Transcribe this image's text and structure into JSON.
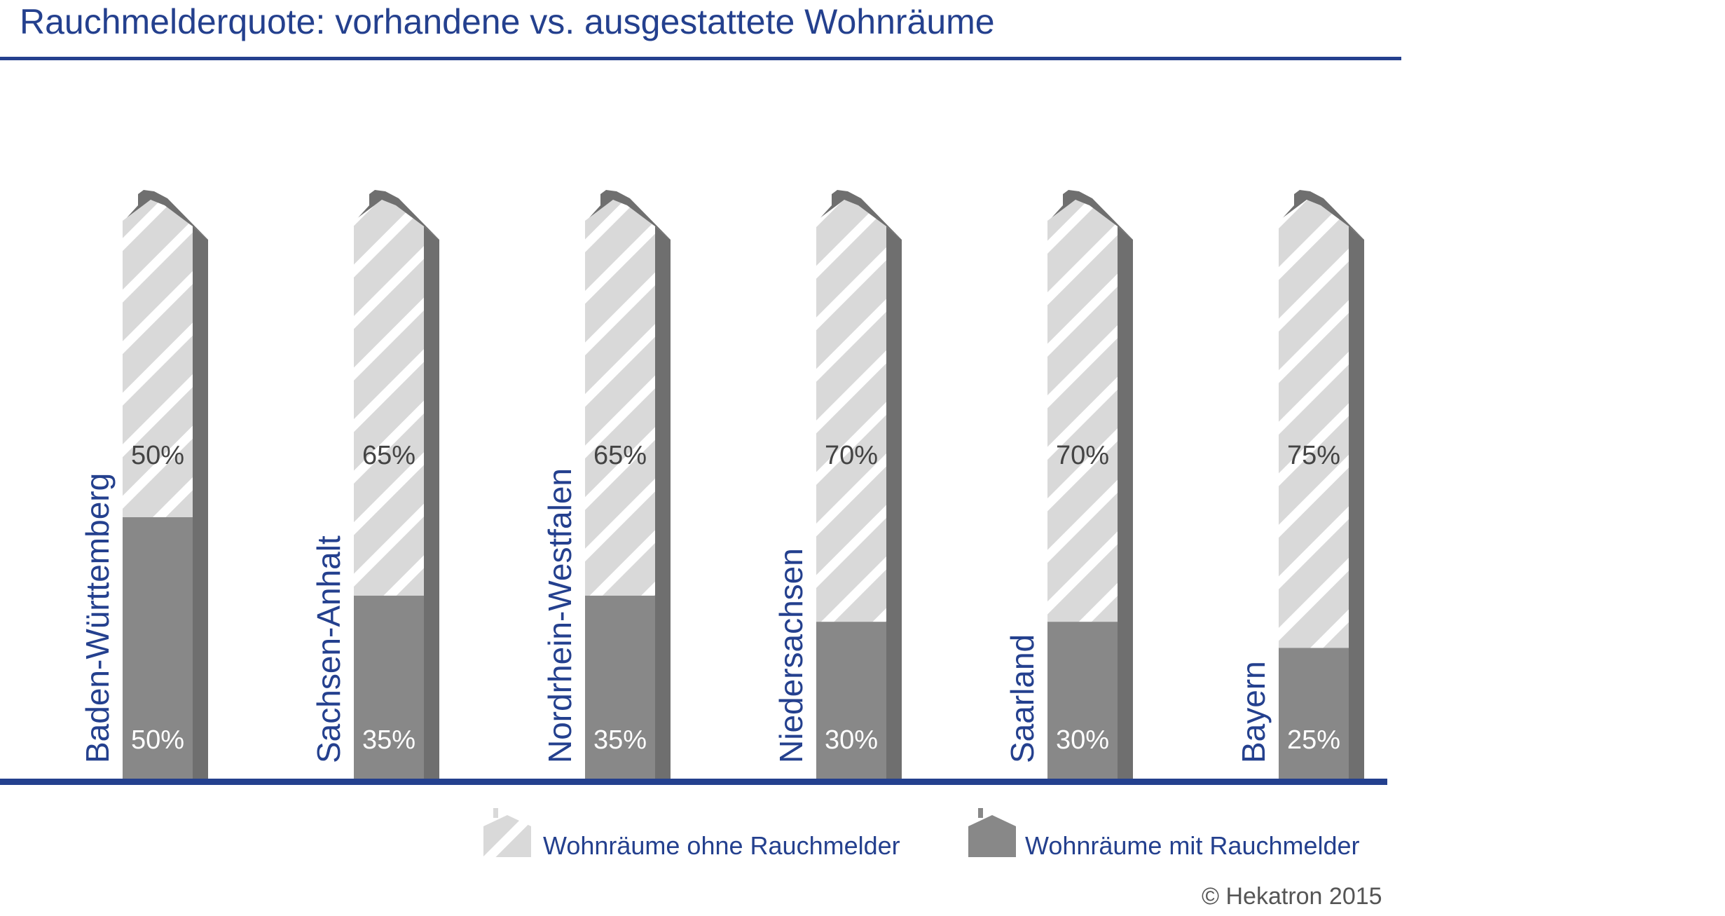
{
  "chart_data": {
    "type": "bar",
    "stacked": true,
    "title": "Rauchmelderquote: vorhandene vs. ausgestattete Wohnräume",
    "categories": [
      "Baden-Württemberg",
      "Sachsen-Anhalt",
      "Nordrhein-Westfalen",
      "Niedersachsen",
      "Saarland",
      "Bayern"
    ],
    "series": [
      {
        "name": "Wohnräume mit Rauchmelder",
        "values": [
          50,
          35,
          35,
          30,
          30,
          25
        ],
        "labels": [
          "50%",
          "35%",
          "35%",
          "30%",
          "30%",
          "25%"
        ],
        "color": "#888888"
      },
      {
        "name": "Wohnräume ohne Rauchmelder",
        "values": [
          50,
          65,
          65,
          70,
          70,
          75
        ],
        "labels": [
          "50%",
          "65%",
          "65%",
          "70%",
          "70%",
          "75%"
        ],
        "color": "#d9d9d9"
      }
    ],
    "ylim": [
      0,
      100
    ],
    "legend_position": "bottom-right",
    "colors": {
      "accent": "#24408e",
      "filled": "#888888",
      "hatched": "#d9d9d9",
      "hatch_stripe": "#ffffff",
      "side": "#6f6f6f"
    }
  },
  "copyright": "© Hekatron 2015"
}
